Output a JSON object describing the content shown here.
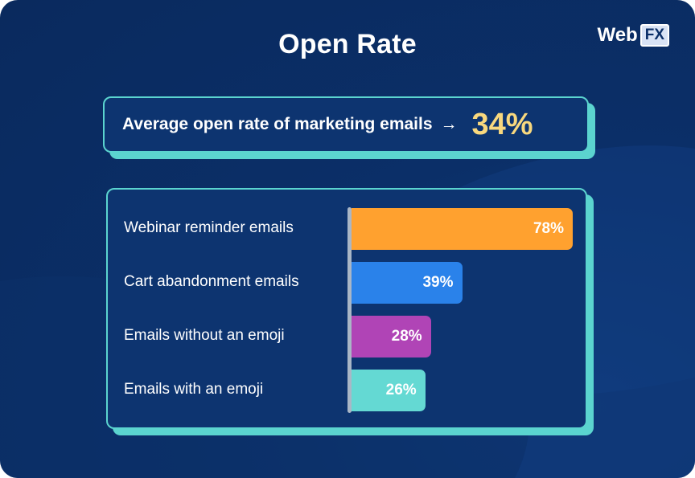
{
  "title": "Open Rate",
  "logo": {
    "brand": "Web",
    "brand_suffix": "FX"
  },
  "average": {
    "label": "Average open rate of marketing emails",
    "arrow": "→",
    "value": "34%"
  },
  "colors": {
    "background": "#0b2f68",
    "accent_teal": "#5bd4cf",
    "highlight_yellow": "#f8d87e"
  },
  "chart_data": {
    "type": "bar",
    "orientation": "horizontal",
    "categories": [
      "Webinar reminder emails",
      "Cart abandonment emails",
      "Emails without an emoji",
      "Emails with an emoji"
    ],
    "values": [
      78,
      39,
      28,
      26
    ],
    "value_labels": [
      "78%",
      "39%",
      "28%",
      "26%"
    ],
    "colors": [
      "#ffa12f",
      "#2a82ea",
      "#b044b6",
      "#64d9d3"
    ],
    "xlim": [
      0,
      78
    ],
    "grid": false,
    "legend": "none"
  }
}
